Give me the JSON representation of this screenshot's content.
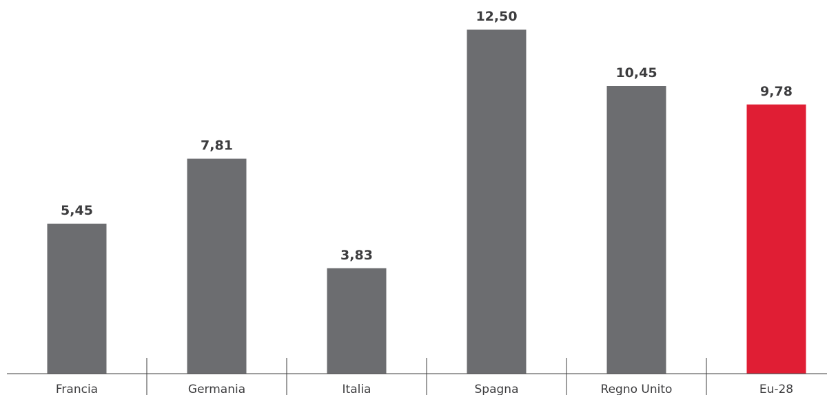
{
  "chart_data": {
    "type": "bar",
    "categories": [
      "Francia",
      "Germania",
      "Italia",
      "Spagna",
      "Regno Unito",
      "Eu-28"
    ],
    "values": [
      5.45,
      7.81,
      3.83,
      12.5,
      10.45,
      9.78
    ],
    "value_labels": [
      "5,45",
      "7,81",
      "3,83",
      "12,50",
      "10,45",
      "9,78"
    ],
    "bar_colors": [
      "#6c6d70",
      "#6c6d70",
      "#6c6d70",
      "#6c6d70",
      "#6c6d70",
      "#e01e34"
    ],
    "title": "",
    "xlabel": "",
    "ylabel": "",
    "ylim": [
      0,
      12.5
    ],
    "grid": false,
    "legend": "none"
  },
  "colors": {
    "bar_default": "#6c6d70",
    "bar_highlight": "#e01e34",
    "axis": "#3c3c3e",
    "text": "#3c3c3e"
  }
}
